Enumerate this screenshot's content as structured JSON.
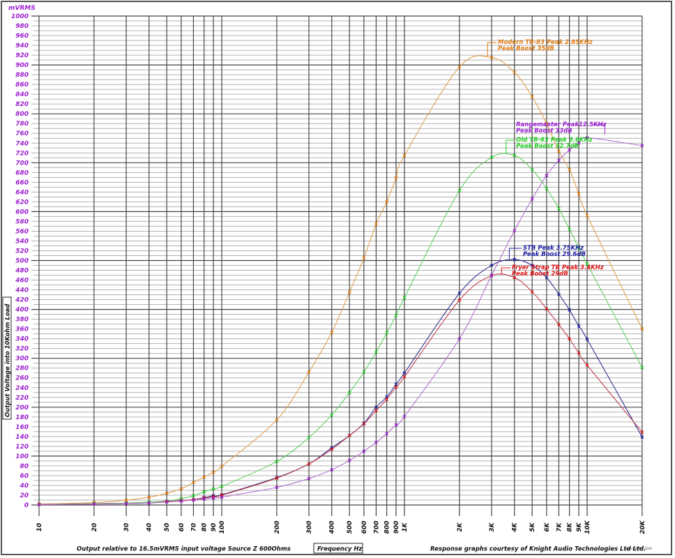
{
  "chart_data": {
    "type": "line",
    "title": "",
    "xlabel": "Frequency Hz",
    "ylabel": "Output Voltage into 10Kohm Load",
    "y_unit": "mVRMS",
    "x_scale": "log",
    "xlim": [
      10,
      20000
    ],
    "ylim": [
      0,
      1000
    ],
    "grid": true,
    "x_ticks": [
      {
        "f": 10,
        "label": "10"
      },
      {
        "f": 20,
        "label": "20"
      },
      {
        "f": 30,
        "label": "30"
      },
      {
        "f": 40,
        "label": "40"
      },
      {
        "f": 50,
        "label": "50"
      },
      {
        "f": 60,
        "label": "60"
      },
      {
        "f": 70,
        "label": "70"
      },
      {
        "f": 80,
        "label": "80"
      },
      {
        "f": 90,
        "label": "90"
      },
      {
        "f": 100,
        "label": "100"
      },
      {
        "f": 200,
        "label": "200"
      },
      {
        "f": 300,
        "label": "300"
      },
      {
        "f": 400,
        "label": "400"
      },
      {
        "f": 500,
        "label": "500"
      },
      {
        "f": 600,
        "label": "600"
      },
      {
        "f": 700,
        "label": "700"
      },
      {
        "f": 800,
        "label": "800"
      },
      {
        "f": 900,
        "label": "900"
      },
      {
        "f": 1000,
        "label": "1K"
      },
      {
        "f": 2000,
        "label": "2K"
      },
      {
        "f": 3000,
        "label": "3K"
      },
      {
        "f": 4000,
        "label": "4K"
      },
      {
        "f": 5000,
        "label": "5K"
      },
      {
        "f": 6000,
        "label": "6K"
      },
      {
        "f": 7000,
        "label": "7K"
      },
      {
        "f": 8000,
        "label": "8K"
      },
      {
        "f": 9000,
        "label": "9K"
      },
      {
        "f": 10000,
        "label": "10K"
      },
      {
        "f": 20000,
        "label": "20K"
      }
    ],
    "y_ticks": [
      0,
      20,
      40,
      60,
      80,
      100,
      120,
      140,
      160,
      180,
      200,
      220,
      240,
      260,
      280,
      300,
      320,
      340,
      360,
      380,
      400,
      420,
      440,
      460,
      480,
      500,
      520,
      540,
      560,
      580,
      600,
      620,
      640,
      660,
      680,
      700,
      720,
      740,
      760,
      780,
      800,
      820,
      840,
      860,
      880,
      900,
      920,
      940,
      960,
      980,
      1000
    ],
    "x": [
      10,
      20,
      30,
      40,
      50,
      60,
      70,
      80,
      90,
      100,
      200,
      300,
      400,
      500,
      600,
      700,
      800,
      900,
      1000,
      2000,
      3000,
      4000,
      5000,
      6000,
      7000,
      8000,
      9000,
      10000,
      20000
    ],
    "series": [
      {
        "name": "Modern TB-83",
        "color": "#e0a050",
        "label_color": "#e07a10",
        "values": [
          2,
          5,
          10,
          16,
          24,
          33,
          46,
          57,
          67,
          79,
          174,
          272,
          353,
          435,
          505,
          575,
          620,
          669,
          715,
          896,
          915,
          885,
          835,
          780,
          723,
          686,
          637,
          592,
          360
        ],
        "annotation": [
          "Modern TB-83 Peak 2.85KHz",
          "Peak Boost 35dB"
        ],
        "peak": {
          "f": 2850,
          "v": 916
        }
      },
      {
        "name": "Old TB-83",
        "color": "#60d060",
        "label_color": "#22cc22",
        "values": [
          1,
          3,
          4,
          6,
          8,
          13,
          19,
          27,
          33,
          38,
          89,
          138,
          184,
          230,
          272,
          313,
          352,
          388,
          424,
          643,
          711,
          715,
          686,
          647,
          606,
          564,
          526,
          493,
          281
        ],
        "annotation": [
          "Old TB-83 Peak 3.6KHz",
          "Peak Boost 32.7dB"
        ],
        "peak": {
          "f": 3600,
          "v": 718
        }
      },
      {
        "name": "STB",
        "color": "#303090",
        "label_color": "#1a1aa0",
        "values": [
          1,
          2,
          3,
          4,
          7,
          9,
          11,
          15,
          19,
          21,
          56,
          84,
          117,
          142,
          167,
          200,
          221,
          247,
          270,
          433,
          490,
          502,
          490,
          465,
          431,
          399,
          366,
          339,
          139
        ],
        "annotation": [
          "STB Peak 3.75KHz",
          "Peak Boost 29.6dB"
        ],
        "peak": {
          "f": 3750,
          "v": 503
        }
      },
      {
        "name": "Fryer Strap TB",
        "color": "#c04050",
        "label_color": "#dd1111",
        "values": [
          1,
          2,
          3,
          4,
          7,
          9,
          11,
          14,
          17,
          20,
          55,
          84,
          114,
          142,
          166,
          193,
          216,
          241,
          262,
          419,
          469,
          465,
          436,
          401,
          369,
          340,
          311,
          286,
          149
        ],
        "annotation": [
          "Fryer Strap TB Peak 3.4KHz",
          "Peak Boost 29dB"
        ],
        "peak": {
          "f": 3400,
          "v": 471
        }
      },
      {
        "name": "Rangemaster",
        "color": "#b070d0",
        "label_color": "#9b1fd0",
        "values": [
          1,
          2,
          3,
          4,
          6,
          8,
          10,
          12,
          14,
          16,
          36,
          54,
          72,
          91,
          110,
          128,
          146,
          164,
          181,
          340,
          470,
          561,
          626,
          674,
          705,
          726,
          740,
          751,
          735
        ],
        "annotation": [
          "Rangemaster Peak12.5KHz",
          "Peak Boost 33dB"
        ],
        "peak": {
          "f": 12500,
          "v": 758
        }
      }
    ]
  },
  "labels": {
    "y_unit": "mVRMS",
    "y_axis_title": "Output Voltage into 10Kohm Load",
    "x_axis_title": "Frequency Hz",
    "footer_left": "Output relative to 16.5mVRMS input voltage Source Z 600Ohms",
    "footer_right": "Response graphs courtesy of Knight Audio Technologies Ltd Ltd.",
    "copyright": "Copyright KAT 2018"
  },
  "colors": {
    "axis_label": "#9b1fd0",
    "grid_major": "#444444",
    "grid_minor": "#b0b0b0",
    "frame": "#555555"
  }
}
